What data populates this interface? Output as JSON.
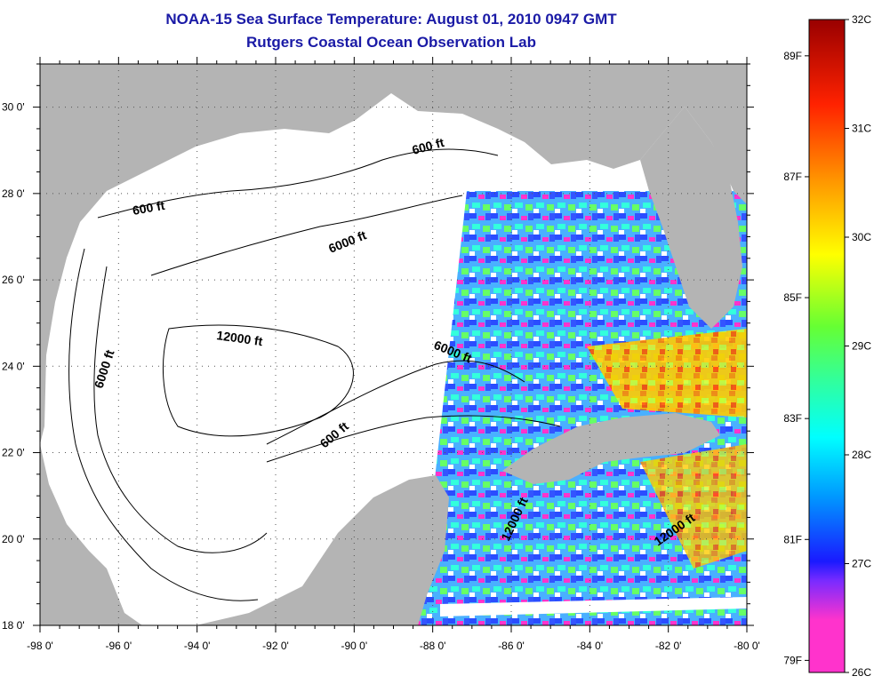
{
  "title": {
    "line1": "NOAA-15 Sea Surface Temperature:  August 01, 2010 0947 GMT",
    "line2": "Rutgers Coastal Ocean Observation Lab"
  },
  "map": {
    "lon_range": [
      -98,
      -80
    ],
    "lat_range": [
      18,
      31
    ],
    "lon_ticks": [
      "-98 0'",
      "-96 0'",
      "-94 0'",
      "-92 0'",
      "-90 0'",
      "-88 0'",
      "-86 0'",
      "-84 0'",
      "-82 0'",
      "-80 0'"
    ],
    "lat_ticks": [
      "30 0'",
      "28 0'",
      "26 0'",
      "24 0'",
      "22 0'",
      "20 0'",
      "18 0'"
    ],
    "grid": "dotted",
    "land_color": "#b4b4b4",
    "water_nodata_color": "#ffffff",
    "contour_labels": [
      {
        "text": "600 ft"
      },
      {
        "text": "600 ft"
      },
      {
        "text": "6000 ft"
      },
      {
        "text": "6000 ft"
      },
      {
        "text": "12000 ft"
      },
      {
        "text": "6000 ft"
      },
      {
        "text": "600 ft"
      },
      {
        "text": "12000 ft"
      },
      {
        "text": "12000 ft"
      }
    ]
  },
  "colorbar": {
    "celsius": [
      "32C",
      "31C",
      "30C",
      "29C",
      "28C",
      "27C",
      "26C"
    ],
    "fahrenheit": [
      "89F",
      "87F",
      "85F",
      "83F",
      "81F",
      "79F"
    ],
    "colors": [
      "#ff33cc",
      "#7a2bff",
      "#1a1aff",
      "#0099ff",
      "#00ffff",
      "#33ff99",
      "#66ff33",
      "#ffff00",
      "#ff9900",
      "#ff2200",
      "#990000"
    ]
  }
}
